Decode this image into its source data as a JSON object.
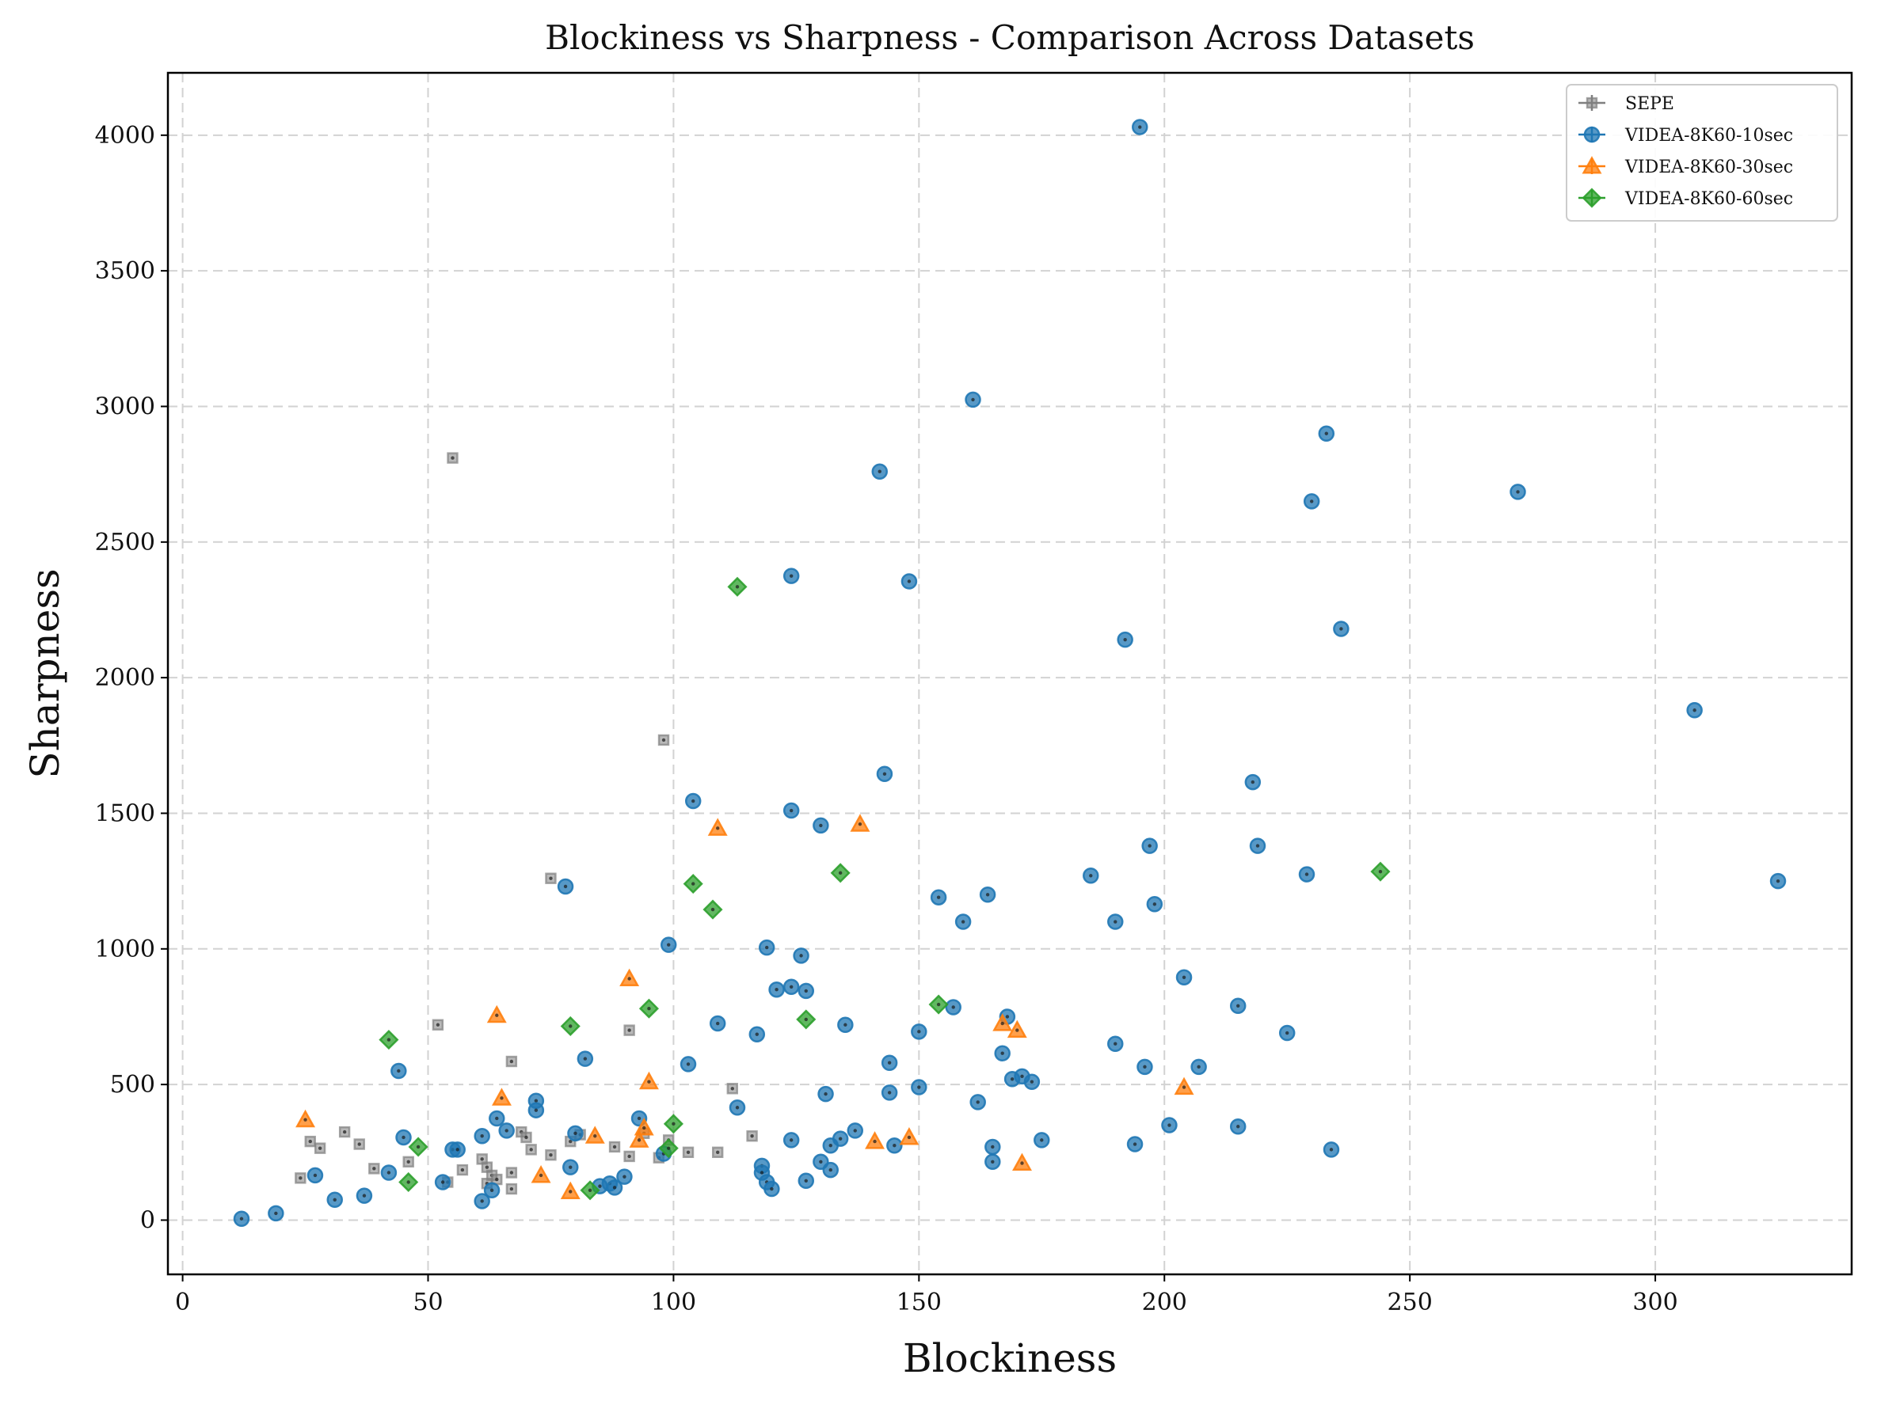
{
  "chart_data": {
    "type": "scatter",
    "title": "Blockiness vs Sharpness - Comparison Across Datasets",
    "xlabel": "Blockiness",
    "ylabel": "Sharpness",
    "xlim": [
      -3,
      340
    ],
    "ylim": [
      -200,
      4230
    ],
    "xticks": [
      0,
      50,
      100,
      150,
      200,
      250,
      300
    ],
    "yticks": [
      0,
      500,
      1000,
      1500,
      2000,
      2500,
      3000,
      3500,
      4000
    ],
    "grid": true,
    "legend_position": "top-right",
    "series": [
      {
        "name": "SEPE",
        "color": "#7f7f7f",
        "marker": "square",
        "points": [
          [
            24,
            155
          ],
          [
            26,
            290
          ],
          [
            28,
            265
          ],
          [
            33,
            325
          ],
          [
            36,
            280
          ],
          [
            39,
            190
          ],
          [
            46,
            215
          ],
          [
            52,
            720
          ],
          [
            55,
            2810
          ],
          [
            57,
            185
          ],
          [
            54,
            140
          ],
          [
            61,
            225
          ],
          [
            62,
            195
          ],
          [
            62,
            135
          ],
          [
            63,
            165
          ],
          [
            64,
            150
          ],
          [
            67,
            585
          ],
          [
            67,
            175
          ],
          [
            67,
            115
          ],
          [
            69,
            325
          ],
          [
            70,
            305
          ],
          [
            71,
            260
          ],
          [
            75,
            1260
          ],
          [
            75,
            240
          ],
          [
            79,
            290
          ],
          [
            81,
            315
          ],
          [
            88,
            270
          ],
          [
            91,
            700
          ],
          [
            91,
            235
          ],
          [
            94,
            320
          ],
          [
            97,
            230
          ],
          [
            98,
            1770
          ],
          [
            99,
            295
          ],
          [
            103,
            250
          ],
          [
            109,
            250
          ],
          [
            112,
            485
          ],
          [
            116,
            310
          ]
        ]
      },
      {
        "name": "VIDEA-8K60-10sec",
        "color": "#1f77b4",
        "marker": "circle",
        "points": [
          [
            12,
            5
          ],
          [
            19,
            25
          ],
          [
            27,
            165
          ],
          [
            31,
            75
          ],
          [
            37,
            90
          ],
          [
            42,
            175
          ],
          [
            44,
            550
          ],
          [
            45,
            305
          ],
          [
            53,
            140
          ],
          [
            55,
            260
          ],
          [
            56,
            260
          ],
          [
            61,
            310
          ],
          [
            61,
            70
          ],
          [
            63,
            110
          ],
          [
            64,
            375
          ],
          [
            66,
            330
          ],
          [
            72,
            440
          ],
          [
            72,
            405
          ],
          [
            78,
            1230
          ],
          [
            79,
            195
          ],
          [
            80,
            320
          ],
          [
            82,
            595
          ],
          [
            85,
            125
          ],
          [
            87,
            135
          ],
          [
            88,
            120
          ],
          [
            90,
            160
          ],
          [
            93,
            375
          ],
          [
            98,
            245
          ],
          [
            99,
            1015
          ],
          [
            103,
            575
          ],
          [
            104,
            1545
          ],
          [
            109,
            725
          ],
          [
            113,
            415
          ],
          [
            117,
            685
          ],
          [
            118,
            200
          ],
          [
            118,
            175
          ],
          [
            119,
            1005
          ],
          [
            119,
            140
          ],
          [
            120,
            115
          ],
          [
            121,
            850
          ],
          [
            124,
            860
          ],
          [
            124,
            1510
          ],
          [
            124,
            2375
          ],
          [
            124,
            295
          ],
          [
            126,
            975
          ],
          [
            127,
            845
          ],
          [
            127,
            145
          ],
          [
            130,
            1455
          ],
          [
            130,
            215
          ],
          [
            131,
            465
          ],
          [
            132,
            275
          ],
          [
            132,
            185
          ],
          [
            134,
            300
          ],
          [
            135,
            720
          ],
          [
            137,
            330
          ],
          [
            142,
            2760
          ],
          [
            143,
            1645
          ],
          [
            144,
            580
          ],
          [
            144,
            470
          ],
          [
            145,
            275
          ],
          [
            148,
            2355
          ],
          [
            150,
            490
          ],
          [
            150,
            695
          ],
          [
            154,
            1190
          ],
          [
            157,
            785
          ],
          [
            159,
            1100
          ],
          [
            161,
            3025
          ],
          [
            162,
            435
          ],
          [
            164,
            1200
          ],
          [
            165,
            215
          ],
          [
            165,
            270
          ],
          [
            167,
            615
          ],
          [
            168,
            750
          ],
          [
            169,
            520
          ],
          [
            171,
            530
          ],
          [
            173,
            510
          ],
          [
            175,
            295
          ],
          [
            185,
            1270
          ],
          [
            190,
            1100
          ],
          [
            190,
            650
          ],
          [
            192,
            2140
          ],
          [
            194,
            280
          ],
          [
            195,
            4030
          ],
          [
            196,
            565
          ],
          [
            197,
            1380
          ],
          [
            198,
            1165
          ],
          [
            201,
            350
          ],
          [
            204,
            895
          ],
          [
            207,
            565
          ],
          [
            215,
            790
          ],
          [
            215,
            345
          ],
          [
            218,
            1615
          ],
          [
            219,
            1380
          ],
          [
            225,
            690
          ],
          [
            229,
            1275
          ],
          [
            230,
            2650
          ],
          [
            233,
            2900
          ],
          [
            234,
            260
          ],
          [
            236,
            2180
          ],
          [
            272,
            2685
          ],
          [
            308,
            1880
          ],
          [
            325,
            1250
          ]
        ]
      },
      {
        "name": "VIDEA-8K60-30sec",
        "color": "#ff7f0e",
        "marker": "triangle",
        "points": [
          [
            25,
            370
          ],
          [
            64,
            755
          ],
          [
            65,
            450
          ],
          [
            73,
            165
          ],
          [
            79,
            105
          ],
          [
            84,
            310
          ],
          [
            91,
            890
          ],
          [
            93,
            295
          ],
          [
            94,
            340
          ],
          [
            95,
            510
          ],
          [
            109,
            1445
          ],
          [
            138,
            1460
          ],
          [
            141,
            290
          ],
          [
            148,
            305
          ],
          [
            167,
            725
          ],
          [
            170,
            700
          ],
          [
            171,
            210
          ],
          [
            204,
            490
          ]
        ]
      },
      {
        "name": "VIDEA-8K60-60sec",
        "color": "#2ca02c",
        "marker": "diamond",
        "points": [
          [
            42,
            665
          ],
          [
            46,
            140
          ],
          [
            48,
            270
          ],
          [
            79,
            715
          ],
          [
            83,
            110
          ],
          [
            95,
            780
          ],
          [
            99,
            265
          ],
          [
            100,
            355
          ],
          [
            104,
            1240
          ],
          [
            108,
            1145
          ],
          [
            113,
            2335
          ],
          [
            127,
            740
          ],
          [
            134,
            1280
          ],
          [
            154,
            795
          ],
          [
            244,
            1285
          ]
        ]
      }
    ]
  }
}
